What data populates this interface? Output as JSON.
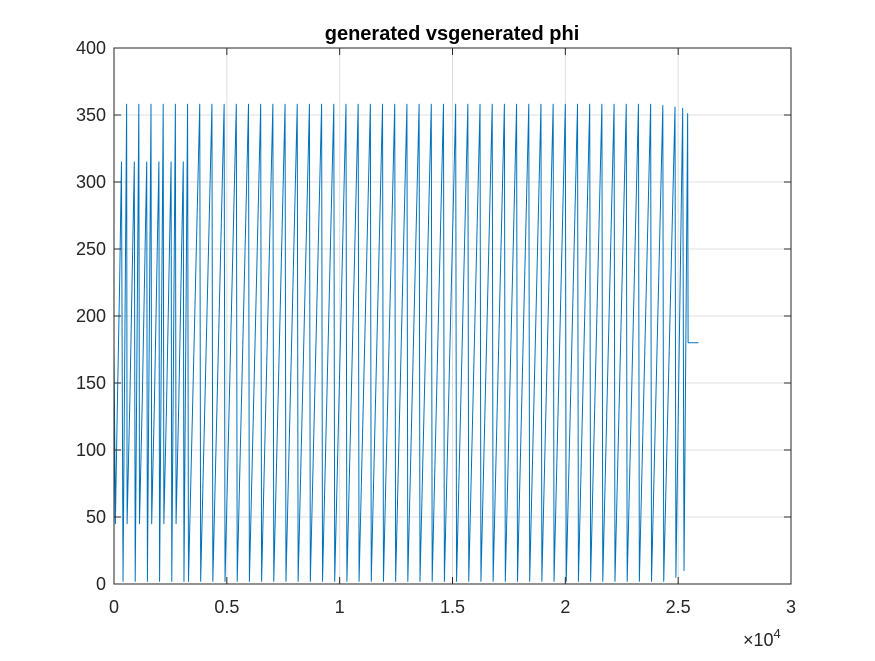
{
  "chart_data": {
    "type": "line",
    "title": "generated vsgenerated phi",
    "xlabel": "",
    "ylabel": "",
    "xlim": [
      0,
      30000
    ],
    "ylim": [
      0,
      400
    ],
    "x_exponent_label": "×10",
    "x_exponent_power": "4",
    "x_tick_values": [
      0,
      5000,
      10000,
      15000,
      20000,
      25000,
      30000
    ],
    "x_tick_labels": [
      "0",
      "0.5",
      "1",
      "1.5",
      "2",
      "2.5",
      "3"
    ],
    "y_tick_values": [
      0,
      50,
      100,
      150,
      200,
      250,
      300,
      350,
      400
    ],
    "y_tick_labels": [
      "0",
      "50",
      "100",
      "150",
      "200",
      "250",
      "300",
      "350",
      "400"
    ],
    "grid": true,
    "series": [
      {
        "name": "",
        "color": "#0072BD",
        "description": "sawtooth oscillation",
        "points": [
          [
            0,
            180
          ],
          [
            60,
            45
          ],
          [
            150,
            135
          ],
          [
            250,
            225
          ],
          [
            330,
            315
          ],
          [
            400,
            2
          ],
          [
            560,
            358
          ],
          [
            580,
            45
          ],
          [
            700,
            135
          ],
          [
            800,
            225
          ],
          [
            900,
            315
          ],
          [
            940,
            2
          ],
          [
            1100,
            358
          ],
          [
            1130,
            45
          ],
          [
            1250,
            135
          ],
          [
            1350,
            225
          ],
          [
            1450,
            315
          ],
          [
            1480,
            2
          ],
          [
            1640,
            358
          ],
          [
            1670,
            45
          ],
          [
            1790,
            135
          ],
          [
            1890,
            225
          ],
          [
            1990,
            315
          ],
          [
            2020,
            2
          ],
          [
            2180,
            358
          ],
          [
            2210,
            45
          ],
          [
            2330,
            135
          ],
          [
            2430,
            225
          ],
          [
            2530,
            315
          ],
          [
            2560,
            2
          ],
          [
            2720,
            358
          ],
          [
            2750,
            45
          ],
          [
            2870,
            135
          ],
          [
            2970,
            225
          ],
          [
            3070,
            315
          ],
          [
            3100,
            2
          ],
          [
            3260,
            358
          ],
          [
            3300,
            2
          ],
          [
            3800,
            358
          ],
          [
            3840,
            2
          ],
          [
            4340,
            358
          ],
          [
            4380,
            2
          ],
          [
            4880,
            358
          ],
          [
            4920,
            2
          ],
          [
            5420,
            358
          ],
          [
            5460,
            2
          ],
          [
            5960,
            358
          ],
          [
            6000,
            2
          ],
          [
            6500,
            358
          ],
          [
            6540,
            2
          ],
          [
            7040,
            358
          ],
          [
            7080,
            2
          ],
          [
            7580,
            358
          ],
          [
            7620,
            2
          ],
          [
            8120,
            358
          ],
          [
            8160,
            2
          ],
          [
            8660,
            358
          ],
          [
            8700,
            2
          ],
          [
            9200,
            358
          ],
          [
            9240,
            2
          ],
          [
            9740,
            358
          ],
          [
            9780,
            2
          ],
          [
            10280,
            358
          ],
          [
            10320,
            2
          ],
          [
            10820,
            358
          ],
          [
            10860,
            2
          ],
          [
            11360,
            358
          ],
          [
            11400,
            2
          ],
          [
            11900,
            358
          ],
          [
            11940,
            2
          ],
          [
            12440,
            358
          ],
          [
            12480,
            2
          ],
          [
            12980,
            358
          ],
          [
            13020,
            2
          ],
          [
            13520,
            358
          ],
          [
            13560,
            2
          ],
          [
            14060,
            358
          ],
          [
            14100,
            2
          ],
          [
            14600,
            358
          ],
          [
            14640,
            2
          ],
          [
            15140,
            358
          ],
          [
            15180,
            2
          ],
          [
            15680,
            358
          ],
          [
            15720,
            2
          ],
          [
            16220,
            358
          ],
          [
            16260,
            2
          ],
          [
            16760,
            358
          ],
          [
            16800,
            2
          ],
          [
            17300,
            358
          ],
          [
            17340,
            2
          ],
          [
            17840,
            358
          ],
          [
            17880,
            2
          ],
          [
            18380,
            358
          ],
          [
            18420,
            2
          ],
          [
            18920,
            358
          ],
          [
            18960,
            2
          ],
          [
            19460,
            358
          ],
          [
            19500,
            2
          ],
          [
            20000,
            358
          ],
          [
            20040,
            2
          ],
          [
            20540,
            358
          ],
          [
            20580,
            2
          ],
          [
            21080,
            358
          ],
          [
            21120,
            2
          ],
          [
            21620,
            358
          ],
          [
            21660,
            2
          ],
          [
            22160,
            358
          ],
          [
            22200,
            2
          ],
          [
            22700,
            358
          ],
          [
            22740,
            2
          ],
          [
            23240,
            358
          ],
          [
            23280,
            2
          ],
          [
            23780,
            358
          ],
          [
            23820,
            2
          ],
          [
            24320,
            357
          ],
          [
            24360,
            2
          ],
          [
            24860,
            356
          ],
          [
            24900,
            5
          ],
          [
            25200,
            355
          ],
          [
            25260,
            10
          ],
          [
            25420,
            351
          ],
          [
            25440,
            180
          ],
          [
            25900,
            180
          ]
        ]
      }
    ]
  }
}
